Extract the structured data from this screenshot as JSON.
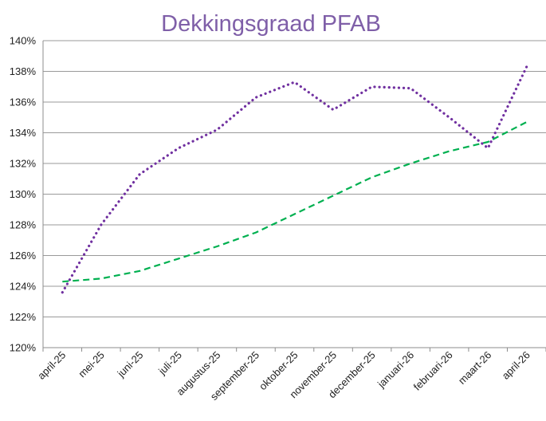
{
  "chart_data": {
    "type": "line",
    "title": "Dekkingsgraad  PFAB",
    "categories": [
      "april-25",
      "mei-25",
      "juni-25",
      "juli-25",
      "augustus-25",
      "september-25",
      "oktober-25",
      "november-25",
      "december-25",
      "januari-26",
      "februari-26",
      "maart-26",
      "april-26"
    ],
    "ylim": [
      120,
      140
    ],
    "yticks": [
      120,
      122,
      124,
      126,
      128,
      130,
      132,
      134,
      136,
      138,
      140
    ],
    "ytick_suffix": "%",
    "grid": true,
    "legend": "none",
    "series": [
      {
        "style": "dotted",
        "color": "#7030a0",
        "values": [
          123.6,
          128.0,
          131.3,
          133.0,
          134.2,
          136.3,
          137.3,
          135.5,
          137.0,
          136.9,
          135.0,
          133.0,
          138.3
        ]
      },
      {
        "style": "dashed",
        "color": "#00b050",
        "values": [
          124.3,
          124.5,
          125.0,
          125.8,
          126.6,
          127.5,
          128.7,
          129.9,
          131.1,
          132.0,
          132.8,
          133.4,
          134.7
        ]
      }
    ]
  }
}
